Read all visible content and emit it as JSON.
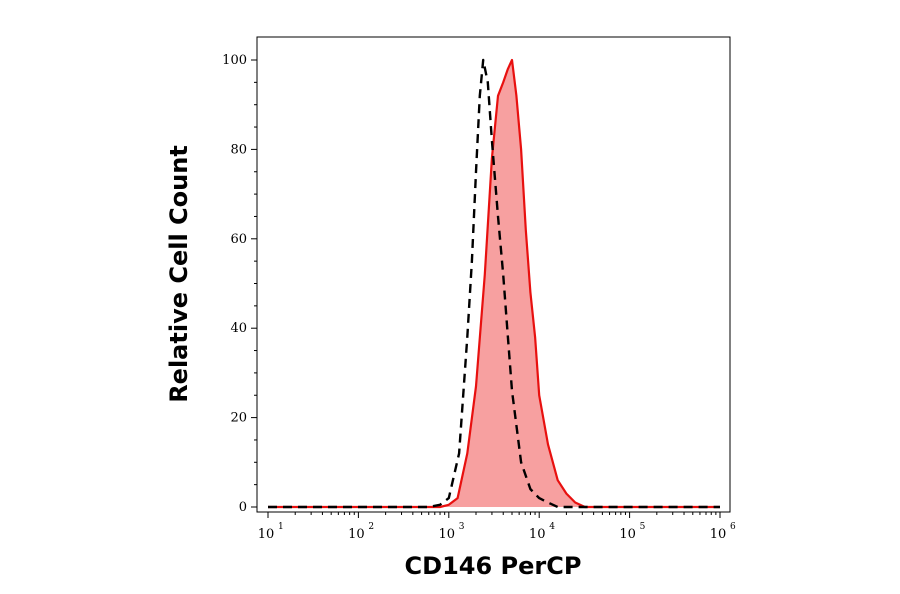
{
  "chart_data": {
    "type": "area",
    "xlabel": "CD146 PerCP",
    "ylabel": "Relative Cell Count",
    "x_scale": "log",
    "xlim": [
      10,
      1000000
    ],
    "ylim": [
      0,
      100
    ],
    "x_ticks": [
      {
        "base": "10",
        "exp": "1"
      },
      {
        "base": "10",
        "exp": "2"
      },
      {
        "base": "10",
        "exp": "3"
      },
      {
        "base": "10",
        "exp": "4"
      },
      {
        "base": "10",
        "exp": "5"
      },
      {
        "base": "10",
        "exp": "6"
      }
    ],
    "y_ticks": [
      "0",
      "20",
      "40",
      "60",
      "80",
      "100"
    ],
    "grid": false,
    "colors": {
      "stained": "#e8100f",
      "stained_fill": "#f7a0a0",
      "control": "#000000"
    },
    "series": [
      {
        "style": "filled-red",
        "x": [
          10,
          100,
          800,
          1000,
          1250,
          1600,
          2000,
          2500,
          3000,
          3500,
          4000,
          4500,
          5000,
          5600,
          6300,
          7100,
          8000,
          9000,
          10000,
          12500,
          16000,
          20000,
          25000,
          32000,
          40000,
          1000000
        ],
        "y": [
          0,
          0,
          0,
          0.5,
          2,
          12,
          27,
          52,
          78,
          92,
          95,
          98,
          100,
          92,
          80,
          62,
          48,
          38,
          25,
          14,
          6,
          3,
          1,
          0,
          0,
          0
        ]
      },
      {
        "style": "dashed-black",
        "x": [
          10,
          100,
          600,
          800,
          1000,
          1300,
          1600,
          1800,
          2000,
          2200,
          2400,
          2700,
          3000,
          3500,
          4000,
          4500,
          5000,
          6300,
          8000,
          10000,
          12500,
          16000,
          20000,
          1000000
        ],
        "y": [
          0,
          0,
          0,
          0.5,
          2,
          12,
          38,
          55,
          75,
          92,
          100,
          95,
          82,
          65,
          52,
          38,
          26,
          10,
          4,
          2,
          1,
          0,
          0,
          0
        ]
      }
    ]
  }
}
